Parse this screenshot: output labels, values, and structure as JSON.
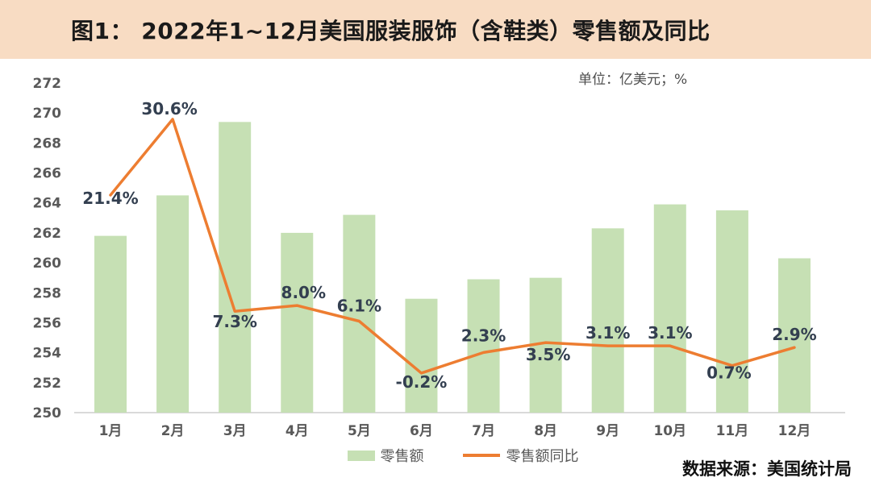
{
  "header": {
    "title": "图1： 2022年1~12月美国服装服饰（含鞋类）零售额及同比"
  },
  "unit_label": "单位：亿美元；%",
  "legend": {
    "bar_label": "零售额",
    "line_label": "零售额同比"
  },
  "source": "数据来源：美国统计局",
  "colors": {
    "header_bg": "#F8DCC3",
    "bar": "#C6E0B4",
    "line": "#ED7D31",
    "point_label": "#333F50",
    "axis_text": "#595959",
    "axis_line": "#D9D9D9"
  },
  "chart_data": {
    "type": "bar+line",
    "title": "2022年1~12月美国服装服饰（含鞋类）零售额及同比",
    "categories": [
      "1月",
      "2月",
      "3月",
      "4月",
      "5月",
      "6月",
      "7月",
      "8月",
      "9月",
      "10月",
      "11月",
      "12月"
    ],
    "series": [
      {
        "name": "零售额",
        "type": "bar",
        "axis": "left",
        "values": [
          261.8,
          264.5,
          269.4,
          262.0,
          263.2,
          257.6,
          258.9,
          259.0,
          262.3,
          263.9,
          263.5,
          260.3
        ]
      },
      {
        "name": "零售额同比",
        "type": "line",
        "axis": "right",
        "values": [
          21.4,
          30.6,
          7.3,
          8.0,
          6.1,
          -0.2,
          2.3,
          3.5,
          3.1,
          3.1,
          0.7,
          2.9
        ],
        "labels": [
          "21.4%",
          "30.6%",
          "7.3%",
          "8.0%",
          "6.1%",
          "-0.2%",
          "2.3%",
          "3.5%",
          "3.1%",
          "3.1%",
          "0.7%",
          "2.9%"
        ]
      }
    ],
    "left_axis": {
      "min": 250,
      "max": 272,
      "ticks": [
        272,
        270,
        268,
        266,
        264,
        262,
        260,
        258,
        256,
        254,
        252,
        250
      ]
    },
    "right_axis": {
      "min": -5,
      "max": 35,
      "visible": false
    },
    "grid": false,
    "legend_position": "bottom",
    "xlabel": "",
    "ylabel": "亿美元"
  }
}
